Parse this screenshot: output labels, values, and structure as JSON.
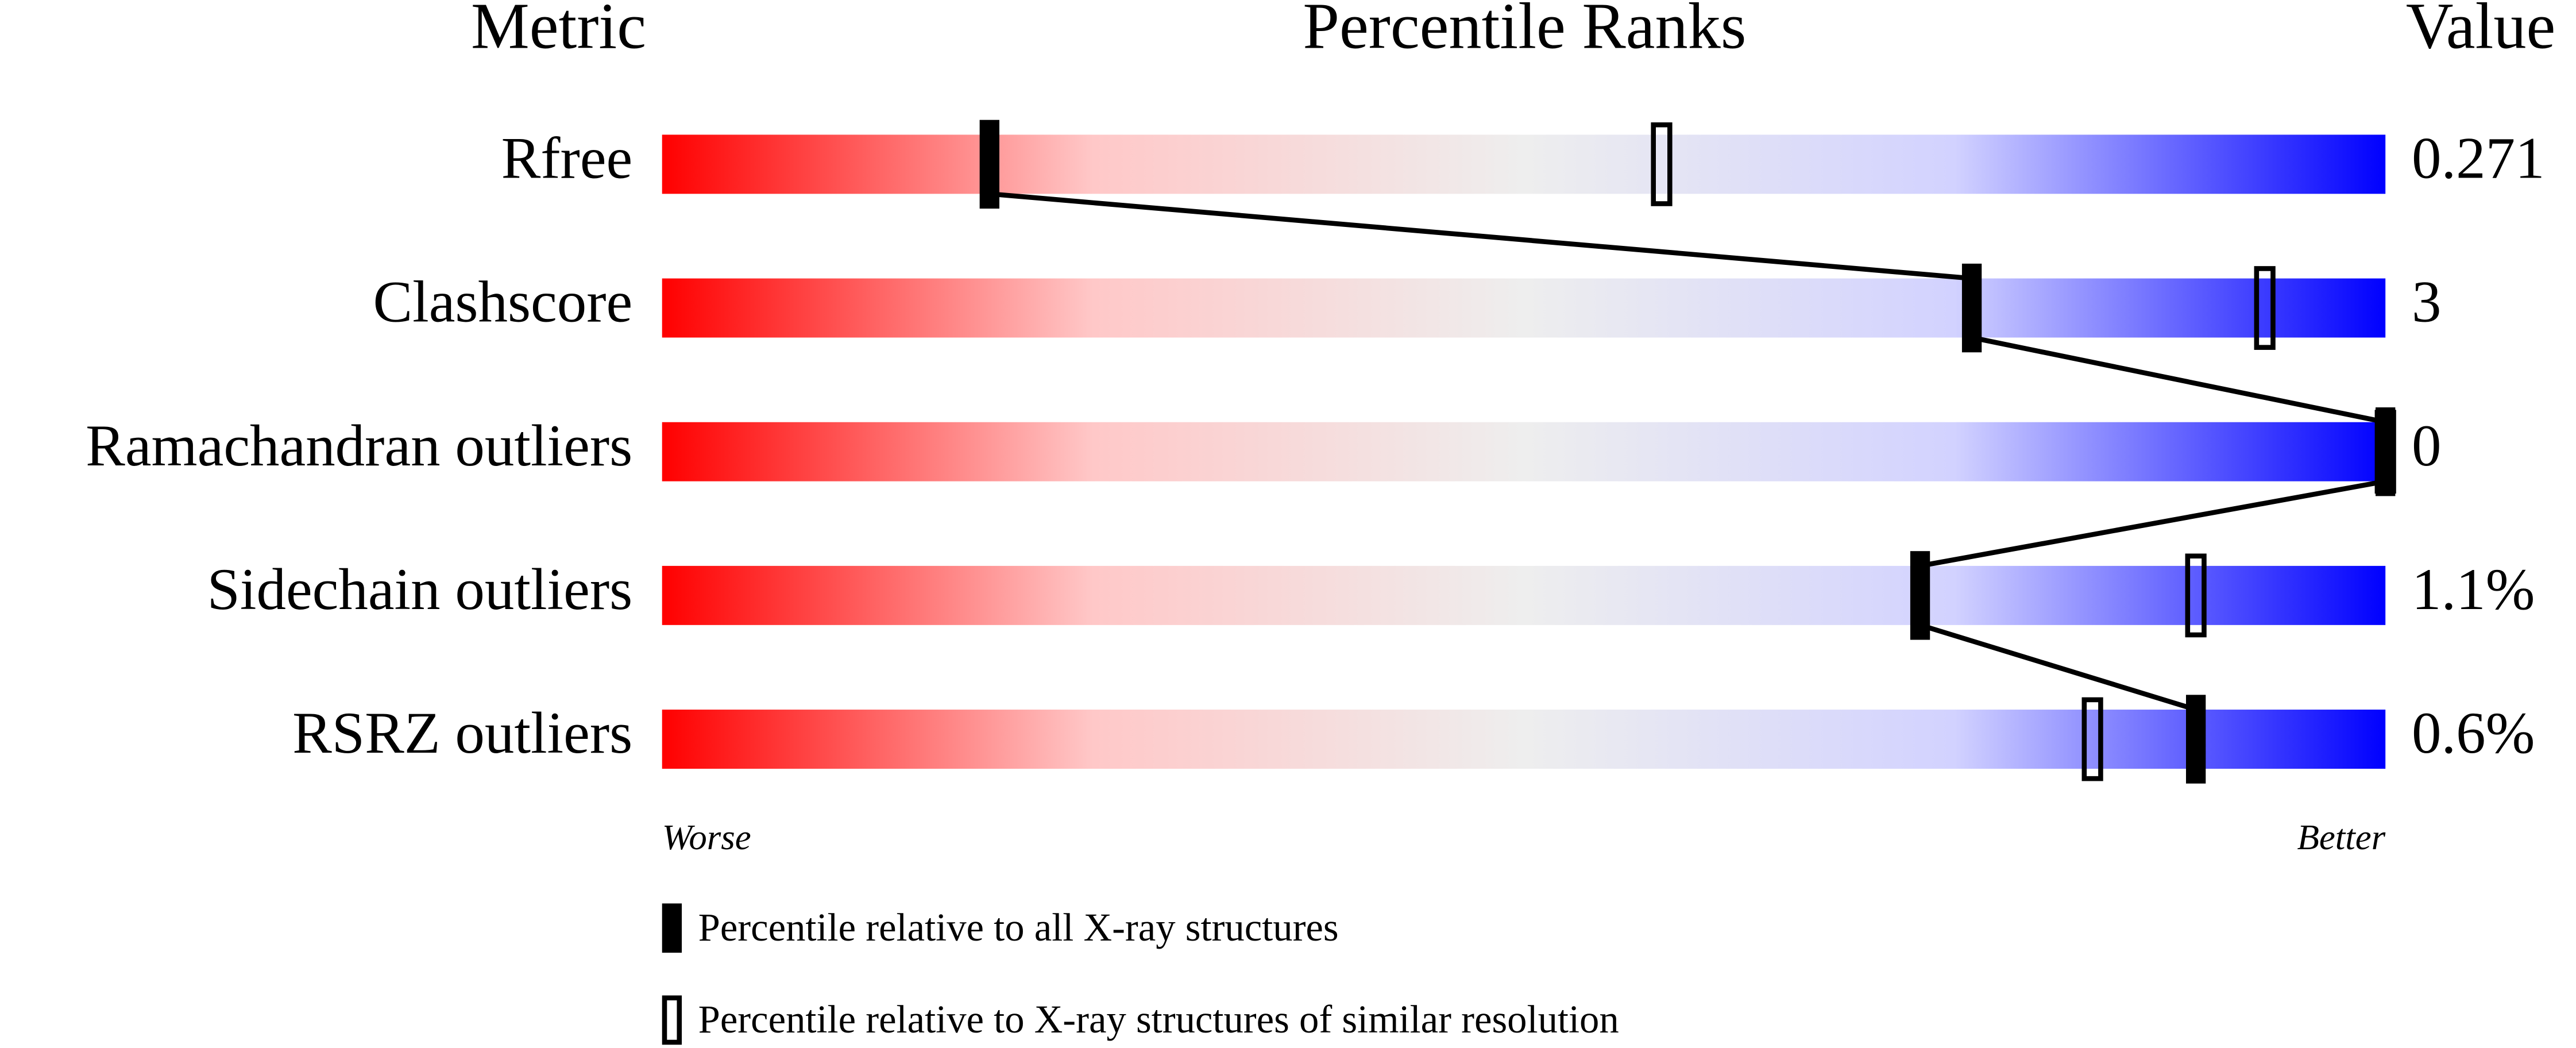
{
  "chart_data": {
    "type": "percentile-slider",
    "headers": {
      "metric": "Metric",
      "ranks": "Percentile Ranks",
      "value": "Value"
    },
    "categories": [
      "Rfree",
      "Clashscore",
      "Ramachandran outliers",
      "Sidechain outliers",
      "RSRZ outliers"
    ],
    "metric_values": [
      "0.271",
      "3",
      "0",
      "1.1%",
      "0.6%"
    ],
    "xlim": [
      0,
      100
    ],
    "scale_labels": {
      "low": "Worse",
      "high": "Better"
    },
    "gradient": [
      "#ff0000",
      "#ffc8c8",
      "#eeeeee",
      "#d2d2ff",
      "#0000ff"
    ],
    "series": [
      {
        "name": "Percentile relative to all X-ray structures",
        "style": "filled",
        "color": "#000000",
        "values": [
          19,
          76,
          100,
          73,
          89
        ]
      },
      {
        "name": "Percentile relative to X-ray structures of similar resolution",
        "style": "hollow",
        "color": "#000000",
        "values": [
          58,
          93,
          100,
          89,
          83
        ]
      }
    ]
  }
}
